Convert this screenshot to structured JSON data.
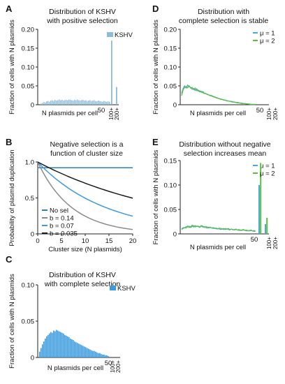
{
  "colors": {
    "kshv_positive": "#8bbcd8",
    "kshv_complete": "#3b9be0",
    "mu1": "#4aa7df",
    "mu2": "#58bf3a",
    "nosel": "#2a7fc0",
    "b014": "#8c8c8c",
    "b007": "#3b9be0",
    "b0035": "#1a1a1a"
  },
  "chart_data": [
    {
      "panel": "A",
      "type": "bar",
      "title": "Distribution of KSHV\nwith positive selection",
      "xlabel": "N plasmids per cell",
      "ylabel": "Fraction of cells with N plasmids",
      "ylim": [
        0,
        0.2
      ],
      "yticks": [
        "0",
        "0.05",
        "0.10",
        "0.15",
        "0.20"
      ],
      "xtick_labels": [
        "50",
        "100+",
        "200+"
      ],
      "legend": [
        "KSHV"
      ],
      "series": [
        {
          "name": "KSHV",
          "values": [
            0.003,
            0.005,
            0.007,
            0.006,
            0.009,
            0.01,
            0.008,
            0.011,
            0.012,
            0.01,
            0.013,
            0.011,
            0.012,
            0.014,
            0.012,
            0.013,
            0.011,
            0.012,
            0.013,
            0.012,
            0.014,
            0.013,
            0.012,
            0.011,
            0.013,
            0.012,
            0.014,
            0.012,
            0.011,
            0.012,
            0.013,
            0.011,
            0.012,
            0.01,
            0.011,
            0.012,
            0.01,
            0.011,
            0.012,
            0.01,
            0.009,
            0.011,
            0.01,
            0.009,
            0.008,
            0.01,
            0.009,
            0.008,
            0.009,
            0.008
          ]
        }
      ],
      "tail": {
        "100+": 0.17,
        "200+": 0.047
      }
    },
    {
      "panel": "B",
      "type": "line",
      "title": "Negative selection is a\nfunction of cluster size",
      "xlabel": "Cluster size (N plasmids)",
      "ylabel": "Probability of plasmid duplication",
      "xlim": [
        0,
        20
      ],
      "ylim": [
        0,
        1.0
      ],
      "xticks": [
        "0",
        "5",
        "10",
        "15",
        "20"
      ],
      "yticks": [
        "0",
        "0.5",
        "1.0"
      ],
      "legend_position": "bottom-left",
      "series": [
        {
          "name": "No sel",
          "b": 0,
          "p0": 0.92
        },
        {
          "name": "b = 0.14",
          "b": 0.14
        },
        {
          "name": "b = 0.07",
          "b": 0.07
        },
        {
          "name": "b = 0.035",
          "b": 0.035
        }
      ]
    },
    {
      "panel": "C",
      "type": "bar",
      "title": "Distribution of KSHV\nwith complete selection",
      "xlabel": "N plasmids per cell",
      "ylabel": "Fraction of cells with N plasmids",
      "ylim": [
        0,
        0.1
      ],
      "yticks": [
        "0",
        "0.05",
        "0.10"
      ],
      "xtick_labels": [
        "50",
        "100+",
        "200+"
      ],
      "legend": [
        "KSHV"
      ],
      "series": [
        {
          "name": "KSHV",
          "values": [
            0.008,
            0.013,
            0.018,
            0.022,
            0.026,
            0.029,
            0.031,
            0.033,
            0.035,
            0.034,
            0.037,
            0.036,
            0.038,
            0.037,
            0.036,
            0.035,
            0.034,
            0.033,
            0.031,
            0.03,
            0.029,
            0.028,
            0.026,
            0.025,
            0.024,
            0.022,
            0.021,
            0.02,
            0.019,
            0.018,
            0.017,
            0.016,
            0.015,
            0.014,
            0.013,
            0.012,
            0.011,
            0.01,
            0.009,
            0.009,
            0.008,
            0.007,
            0.006,
            0.006,
            0.005,
            0.004,
            0.004,
            0.003,
            0.003,
            0.002
          ]
        }
      ],
      "tail": {
        "100+": 0,
        "200+": 0
      }
    },
    {
      "panel": "D",
      "type": "line",
      "title": "Distribution with\ncomplete selection is stable",
      "xlabel": "N plasmids per cell",
      "ylabel": "Fraction of cells with N plasmids",
      "ylim": [
        0,
        0.2
      ],
      "yticks": [
        "0",
        "0.05",
        "0.10",
        "0.15",
        "0.20"
      ],
      "xtick_labels": [
        "50",
        "100+",
        "200+"
      ],
      "legend_position": "top-right",
      "series": [
        {
          "name": "μ = 1",
          "values": [
            0.03,
            0.043,
            0.05,
            0.044,
            0.052,
            0.048,
            0.046,
            0.041,
            0.043,
            0.038,
            0.042,
            0.036,
            0.037,
            0.033,
            0.035,
            0.031,
            0.029,
            0.028,
            0.026,
            0.025,
            0.024,
            0.022,
            0.02,
            0.019,
            0.018,
            0.016,
            0.015,
            0.014,
            0.013,
            0.012,
            0.011,
            0.01,
            0.009,
            0.009,
            0.008,
            0.007,
            0.006,
            0.006,
            0.005,
            0.004,
            0.004,
            0.003,
            0.003,
            0.002,
            0.002,
            0.002,
            0.001,
            0.001,
            0.001,
            0.001
          ]
        },
        {
          "name": "μ = 2",
          "values": [
            0.024,
            0.04,
            0.046,
            0.048,
            0.045,
            0.05,
            0.044,
            0.046,
            0.04,
            0.044,
            0.037,
            0.039,
            0.034,
            0.036,
            0.032,
            0.03,
            0.03,
            0.027,
            0.026,
            0.024,
            0.023,
            0.021,
            0.021,
            0.018,
            0.017,
            0.016,
            0.014,
            0.014,
            0.012,
            0.012,
            0.01,
            0.01,
            0.009,
            0.008,
            0.007,
            0.007,
            0.006,
            0.005,
            0.005,
            0.004,
            0.003,
            0.003,
            0.003,
            0.002,
            0.002,
            0.001,
            0.001,
            0.001,
            0.001,
            0.001
          ]
        }
      ]
    },
    {
      "panel": "E",
      "type": "line",
      "title": "Distribution without negative\nselection increases mean",
      "xlabel": "N plasmids per cell",
      "ylabel": "Fraction of cells with N plasmids",
      "ylim": [
        0,
        0.15
      ],
      "yticks": [
        "0",
        "0.05",
        "0.10",
        "0.15"
      ],
      "xtick_labels": [
        "50",
        "100+",
        "200+"
      ],
      "legend_position": "top-right",
      "series": [
        {
          "name": "μ = 1",
          "values": [
            0.01,
            0.013,
            0.012,
            0.015,
            0.014,
            0.016,
            0.013,
            0.015,
            0.017,
            0.014,
            0.016,
            0.015,
            0.013,
            0.016,
            0.014,
            0.015,
            0.013,
            0.012,
            0.014,
            0.013,
            0.012,
            0.011,
            0.012,
            0.01,
            0.011,
            0.01,
            0.009,
            0.01,
            0.009,
            0.011,
            0.01,
            0.009,
            0.008,
            0.01,
            0.009,
            0.008,
            0.009,
            0.008,
            0.007,
            0.008,
            0.007,
            0.008,
            0.007,
            0.006,
            0.007,
            0.006,
            0.007,
            0.006,
            0.005,
            0.006
          ],
          "tail": {
            "100+": 0.1,
            "200+": 0.02
          }
        },
        {
          "name": "μ = 2",
          "values": [
            0.009,
            0.011,
            0.013,
            0.012,
            0.016,
            0.013,
            0.015,
            0.018,
            0.014,
            0.017,
            0.015,
            0.016,
            0.014,
            0.017,
            0.016,
            0.013,
            0.015,
            0.014,
            0.012,
            0.014,
            0.012,
            0.013,
            0.011,
            0.012,
            0.01,
            0.012,
            0.011,
            0.01,
            0.011,
            0.009,
            0.01,
            0.011,
            0.009,
            0.01,
            0.008,
            0.009,
            0.01,
            0.008,
            0.009,
            0.007,
            0.008,
            0.009,
            0.007,
            0.008,
            0.006,
            0.007,
            0.008,
            0.006,
            0.007,
            0.006
          ],
          "tail": {
            "100+": 0.145,
            "200+": 0.033
          }
        }
      ]
    }
  ],
  "panel_letters": [
    "A",
    "B",
    "C",
    "D",
    "E"
  ]
}
